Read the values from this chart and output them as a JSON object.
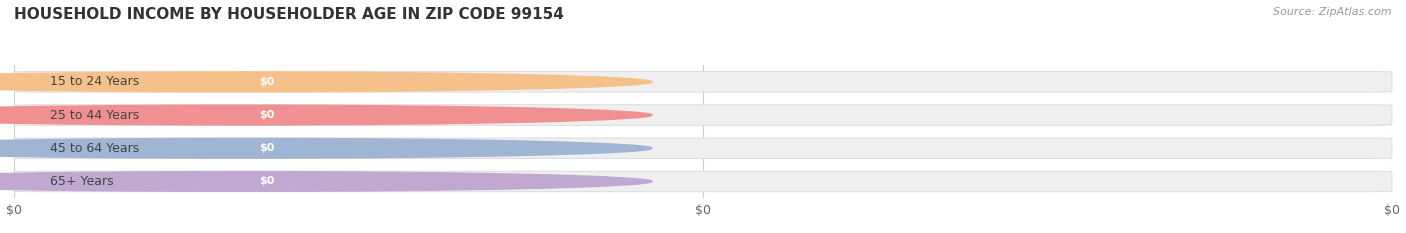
{
  "title": "HOUSEHOLD INCOME BY HOUSEHOLDER AGE IN ZIP CODE 99154",
  "source": "Source: ZipAtlas.com",
  "categories": [
    "15 to 24 Years",
    "25 to 44 Years",
    "45 to 64 Years",
    "65+ Years"
  ],
  "values": [
    0,
    0,
    0,
    0
  ],
  "bar_colors": [
    "#f5c08a",
    "#f09090",
    "#a0b4d4",
    "#c0a8d0"
  ],
  "background_color": "#ffffff",
  "bar_bg_color": "#efefef",
  "bar_border_color": "#e0e0e0",
  "value_labels": [
    "$0",
    "$0",
    "$0",
    "$0"
  ],
  "xtick_positions": [
    0.0,
    0.5,
    1.0
  ],
  "xtick_labels": [
    "$0",
    "$0",
    "$0"
  ],
  "title_fontsize": 11,
  "source_fontsize": 8,
  "cat_fontsize": 9,
  "val_fontsize": 8
}
